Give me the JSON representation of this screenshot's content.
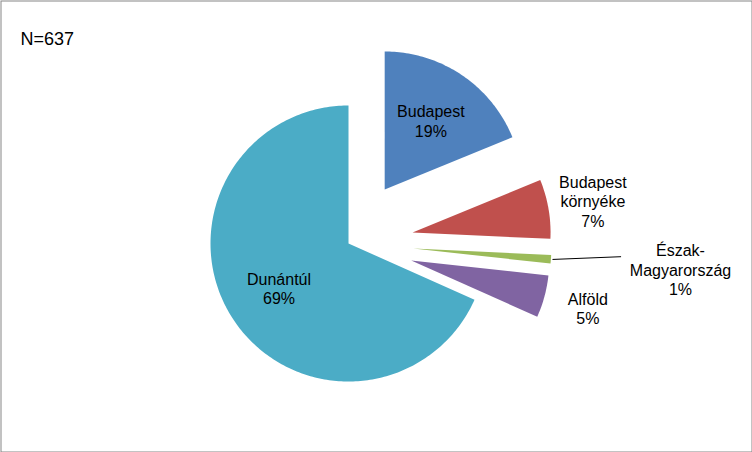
{
  "chart_data": {
    "type": "pie",
    "title": "N=637",
    "categories": [
      "Budapest",
      "Budapest környéke",
      "Észak-Magyarország",
      "Alföld",
      "Dunántúl"
    ],
    "values": [
      19,
      7,
      1,
      5,
      69
    ],
    "value_labels": [
      "19%",
      "7%",
      "1%",
      "5%",
      "69%"
    ],
    "colors": [
      "#4f81bd",
      "#c0504d",
      "#9bbb59",
      "#8064a2",
      "#4bacc6"
    ],
    "data_labels": true
  }
}
